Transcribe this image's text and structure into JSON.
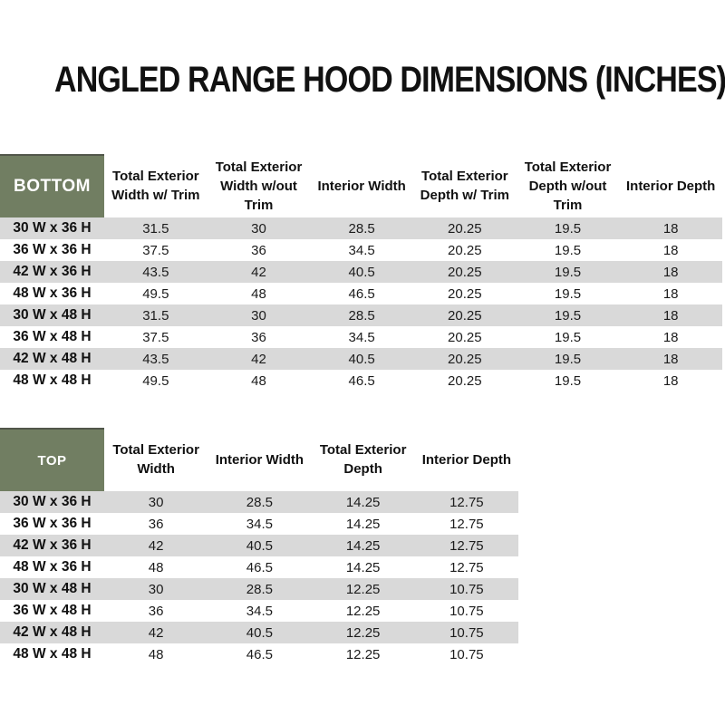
{
  "title": "ANGLED RANGE HOOD DIMENSIONS (INCHES)",
  "colors": {
    "header_green": "#717E62",
    "stripe_gray": "#D9D9D9",
    "header_text": "#FFFFFF",
    "body_text": "#1A1A1A"
  },
  "tables": [
    {
      "label": "BOTTOM",
      "columns": [
        "Total Exterior Width w/ Trim",
        "Total Exterior Width w/out Trim",
        "Interior Width",
        "Total Exterior Depth w/ Trim",
        "Total Exterior Depth w/out Trim",
        "Interior Depth"
      ],
      "rows": [
        {
          "label": "30 W x 36 H",
          "values": [
            "31.5",
            "30",
            "28.5",
            "20.25",
            "19.5",
            "18"
          ]
        },
        {
          "label": "36 W x 36 H",
          "values": [
            "37.5",
            "36",
            "34.5",
            "20.25",
            "19.5",
            "18"
          ]
        },
        {
          "label": "42 W x 36 H",
          "values": [
            "43.5",
            "42",
            "40.5",
            "20.25",
            "19.5",
            "18"
          ]
        },
        {
          "label": "48 W x 36 H",
          "values": [
            "49.5",
            "48",
            "46.5",
            "20.25",
            "19.5",
            "18"
          ]
        },
        {
          "label": "30 W x 48 H",
          "values": [
            "31.5",
            "30",
            "28.5",
            "20.25",
            "19.5",
            "18"
          ]
        },
        {
          "label": "36 W x 48 H",
          "values": [
            "37.5",
            "36",
            "34.5",
            "20.25",
            "19.5",
            "18"
          ]
        },
        {
          "label": "42 W x 48 H",
          "values": [
            "43.5",
            "42",
            "40.5",
            "20.25",
            "19.5",
            "18"
          ]
        },
        {
          "label": "48 W x 48 H",
          "values": [
            "49.5",
            "48",
            "46.5",
            "20.25",
            "19.5",
            "18"
          ]
        }
      ]
    },
    {
      "label": "TOP",
      "columns": [
        "Total Exterior Width",
        "Interior Width",
        "Total Exterior Depth",
        "Interior Depth"
      ],
      "rows": [
        {
          "label": "30 W x 36 H",
          "values": [
            "30",
            "28.5",
            "14.25",
            "12.75"
          ]
        },
        {
          "label": "36 W x 36 H",
          "values": [
            "36",
            "34.5",
            "14.25",
            "12.75"
          ]
        },
        {
          "label": "42 W x 36 H",
          "values": [
            "42",
            "40.5",
            "14.25",
            "12.75"
          ]
        },
        {
          "label": "48 W x 36 H",
          "values": [
            "48",
            "46.5",
            "14.25",
            "12.75"
          ]
        },
        {
          "label": "30 W x 48 H",
          "values": [
            "30",
            "28.5",
            "12.25",
            "10.75"
          ]
        },
        {
          "label": "36 W x 48 H",
          "values": [
            "36",
            "34.5",
            "12.25",
            "10.75"
          ]
        },
        {
          "label": "42 W x 48 H",
          "values": [
            "42",
            "40.5",
            "12.25",
            "10.75"
          ]
        },
        {
          "label": "48 W x 48 H",
          "values": [
            "48",
            "46.5",
            "12.25",
            "10.75"
          ]
        }
      ]
    }
  ]
}
